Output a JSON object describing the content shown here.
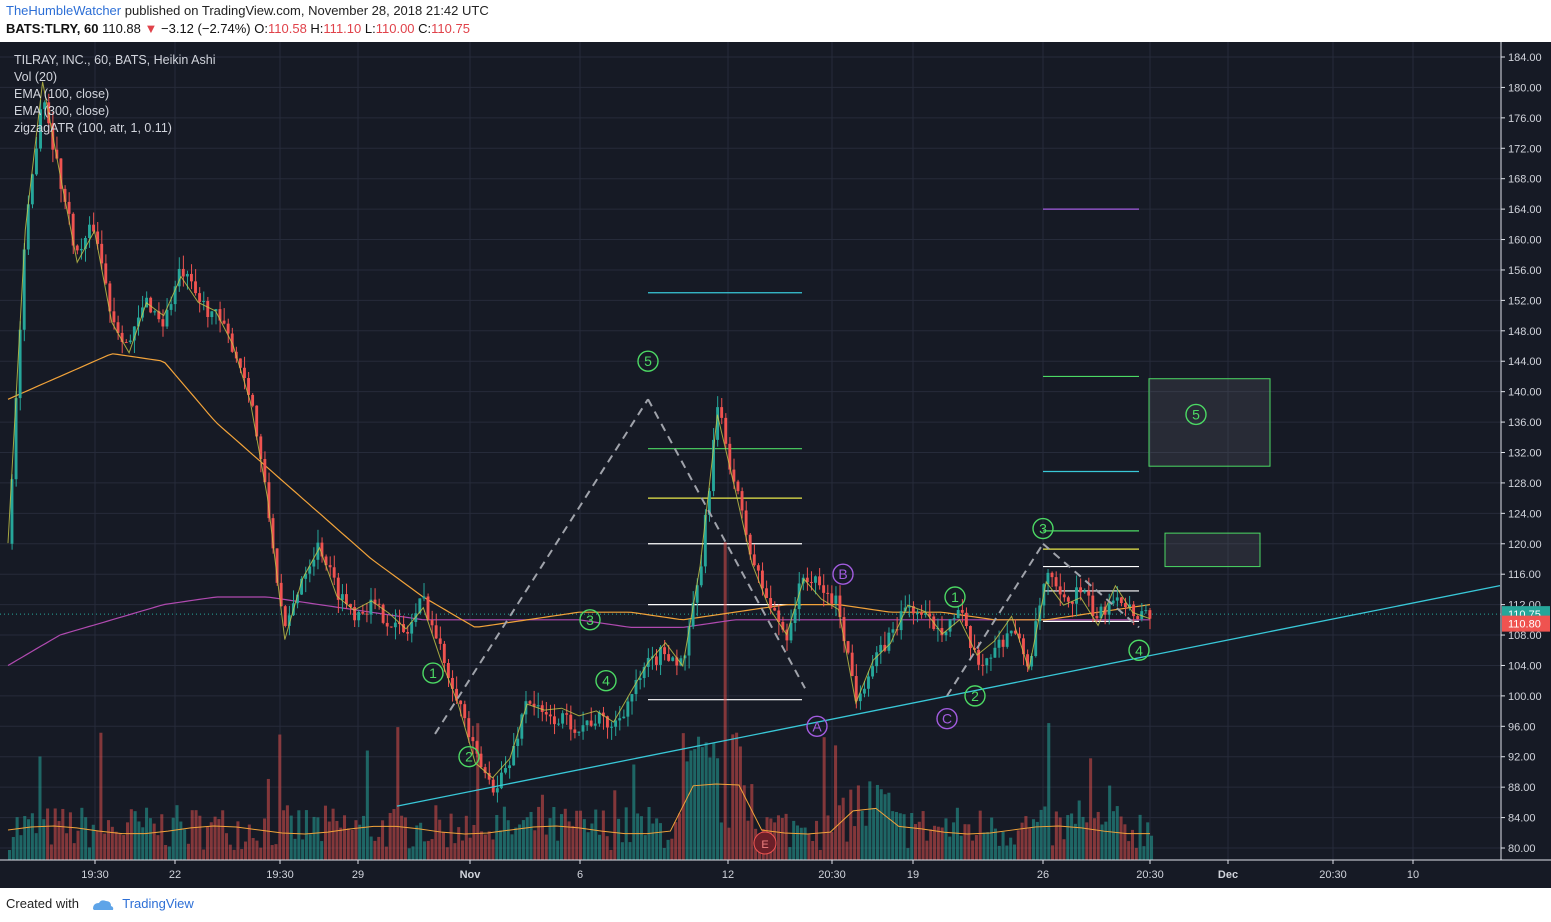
{
  "header": {
    "user": "TheHumbleWatcher",
    "published": "published on TradingView.com, November 28, 2018 21:42 UTC",
    "symbol": "BATS:TLRY, 60",
    "last": "110.88",
    "change": "−3.12 (−2.74%)",
    "o_label": "O:",
    "o_value": "110.58",
    "h_label": "H:",
    "h_value": "111.10",
    "l_label": "L:",
    "l_value": "110.00",
    "c_label": "C:",
    "c_value": "110.75"
  },
  "legend": {
    "title": "TILRAY, INC., 60, BATS, Heikin Ashi",
    "vol": "Vol (20)",
    "ema100": "EMA (100, close)",
    "ema300": "EMA (300, close)",
    "zigzag": "zigzagATR (100, atr, 1, 0.11)"
  },
  "footer": {
    "created": "Created with",
    "brand": "TradingView"
  },
  "colors": {
    "background": "#161a25",
    "up": "#26a69a",
    "down": "#ef5350",
    "ema100": "#f2a33a",
    "ema300": "#b04ab0",
    "zigzag": "#c9c94a",
    "trendline": "#39c8d8",
    "wave_green": "#4cd964",
    "wave_purple": "#a35ce0",
    "dashed": "#a0a3ab",
    "price_tag_current": "#26a69a",
    "price_tag_red": "#ef5350"
  },
  "chart_data": {
    "type": "candlestick",
    "chart_style": "Heikin Ashi",
    "interval": "60",
    "ylim": [
      78,
      186
    ],
    "y_ticks": [
      "184.00",
      "180.00",
      "176.00",
      "172.00",
      "168.00",
      "164.00",
      "160.00",
      "156.00",
      "152.00",
      "148.00",
      "144.00",
      "140.00",
      "136.00",
      "132.00",
      "128.00",
      "124.00",
      "120.00",
      "116.00",
      "112.00",
      "108.00",
      "104.00",
      "100.00",
      "96.00",
      "92.00",
      "88.00",
      "84.00",
      "80.00"
    ],
    "x_ticks": [
      "19:30",
      "22",
      "19:30",
      "29",
      "Nov",
      "6",
      "12",
      "20:30",
      "19",
      "26",
      "20:30",
      "Dec",
      "20:30",
      "10"
    ],
    "price_tags": {
      "current": "110.75",
      "secondary": "110.80"
    },
    "price_path": [
      [
        0,
        120
      ],
      [
        1,
        160
      ],
      [
        2,
        180
      ],
      [
        3,
        168
      ],
      [
        4,
        158
      ],
      [
        5,
        162
      ],
      [
        6,
        150
      ],
      [
        7,
        146
      ],
      [
        8,
        152
      ],
      [
        9,
        149
      ],
      [
        10,
        156
      ],
      [
        11,
        152
      ],
      [
        12,
        150
      ],
      [
        13,
        146
      ],
      [
        14,
        140
      ],
      [
        15,
        125
      ],
      [
        16,
        108
      ],
      [
        17,
        116
      ],
      [
        18,
        120
      ],
      [
        19,
        114
      ],
      [
        20,
        111
      ],
      [
        21,
        112
      ],
      [
        22,
        110
      ],
      [
        23,
        108
      ],
      [
        24,
        113
      ],
      [
        25,
        106
      ],
      [
        26,
        100
      ],
      [
        27,
        92
      ],
      [
        28,
        88
      ],
      [
        29,
        91
      ],
      [
        30,
        100
      ],
      [
        31,
        97
      ],
      [
        32,
        97
      ],
      [
        33,
        96
      ],
      [
        34,
        97
      ],
      [
        35,
        96
      ],
      [
        36,
        100
      ],
      [
        37,
        104
      ],
      [
        38,
        106
      ],
      [
        39,
        104
      ],
      [
        40,
        116
      ],
      [
        41,
        138
      ],
      [
        42,
        128
      ],
      [
        43,
        118
      ],
      [
        44,
        112
      ],
      [
        45,
        108
      ],
      [
        46,
        116
      ],
      [
        47,
        114
      ],
      [
        48,
        112
      ],
      [
        49,
        100
      ],
      [
        50,
        104
      ],
      [
        51,
        108
      ],
      [
        52,
        112
      ],
      [
        53,
        110
      ],
      [
        54,
        109
      ],
      [
        55,
        111
      ],
      [
        56,
        104
      ],
      [
        57,
        106
      ],
      [
        58,
        109
      ],
      [
        59,
        104
      ],
      [
        60,
        116
      ],
      [
        61,
        112
      ],
      [
        62,
        114
      ],
      [
        63,
        110
      ],
      [
        64,
        114
      ],
      [
        65,
        111
      ],
      [
        66,
        111
      ]
    ],
    "ema100_path": [
      [
        0,
        139
      ],
      [
        3,
        142
      ],
      [
        6,
        145
      ],
      [
        9,
        144
      ],
      [
        12,
        136
      ],
      [
        15,
        130
      ],
      [
        18,
        124
      ],
      [
        21,
        118
      ],
      [
        24,
        113
      ],
      [
        27,
        109
      ],
      [
        30,
        110
      ],
      [
        33,
        111
      ],
      [
        36,
        111
      ],
      [
        39,
        110
      ],
      [
        42,
        111
      ],
      [
        45,
        112
      ],
      [
        48,
        112
      ],
      [
        51,
        111
      ],
      [
        54,
        111
      ],
      [
        57,
        110
      ],
      [
        60,
        110
      ],
      [
        63,
        111
      ],
      [
        66,
        112
      ]
    ],
    "ema300_path": [
      [
        0,
        104
      ],
      [
        3,
        108
      ],
      [
        6,
        110
      ],
      [
        9,
        112
      ],
      [
        12,
        113
      ],
      [
        15,
        113
      ],
      [
        18,
        112
      ],
      [
        21,
        111
      ],
      [
        24,
        110
      ],
      [
        27,
        110
      ],
      [
        30,
        110
      ],
      [
        33,
        110
      ],
      [
        36,
        109
      ],
      [
        39,
        109
      ],
      [
        42,
        110
      ],
      [
        45,
        110
      ],
      [
        48,
        110
      ],
      [
        51,
        110
      ],
      [
        54,
        110
      ],
      [
        57,
        110
      ],
      [
        60,
        110
      ],
      [
        63,
        110
      ],
      [
        66,
        110
      ]
    ],
    "trendline": {
      "from": [
        "Oct 30",
        85.5
      ],
      "to": [
        "Dec 13",
        114.5
      ]
    },
    "wave_labels": [
      {
        "text": "1",
        "price": 103,
        "color": "green"
      },
      {
        "text": "2",
        "price": 92,
        "color": "green"
      },
      {
        "text": "3",
        "price": 110,
        "color": "green"
      },
      {
        "text": "4",
        "price": 102,
        "color": "green"
      },
      {
        "text": "5",
        "price": 144,
        "color": "green"
      },
      {
        "text": "A",
        "price": 96,
        "color": "purple"
      },
      {
        "text": "B",
        "price": 116,
        "color": "purple"
      },
      {
        "text": "C",
        "price": 97,
        "color": "purple"
      },
      {
        "text": "1",
        "price": 113,
        "color": "green"
      },
      {
        "text": "2",
        "price": 100,
        "color": "green"
      },
      {
        "text": "3",
        "price": 122,
        "color": "green"
      },
      {
        "text": "4",
        "price": 106,
        "color": "green"
      },
      {
        "text": "5",
        "price": 137,
        "color": "green"
      }
    ],
    "event_marker": "E",
    "target_levels": [
      {
        "price": 153,
        "color": "#39c8d8"
      },
      {
        "price": 132.5,
        "color": "#4cd964"
      },
      {
        "price": 126,
        "color": "#e8e84a"
      },
      {
        "price": 120,
        "color": "#ffffff"
      },
      {
        "price": 112,
        "color": "#ffffff"
      },
      {
        "price": 99.5,
        "color": "#ffffff"
      },
      {
        "price": 164,
        "color": "#a35ce0"
      },
      {
        "price": 142,
        "color": "#4cd964"
      },
      {
        "price": 129.5,
        "color": "#39c8d8"
      },
      {
        "price": 121.7,
        "color": "#4cd964"
      },
      {
        "price": 119.3,
        "color": "#e8e84a"
      },
      {
        "price": 117,
        "color": "#ffffff"
      },
      {
        "price": 113.8,
        "color": "#ffffff"
      },
      {
        "price": 109.8,
        "color": "#ffffff"
      }
    ],
    "target_boxes": [
      {
        "top": 141.7,
        "bottom": 130.2
      },
      {
        "top": 121.4,
        "bottom": 117
      }
    ]
  }
}
